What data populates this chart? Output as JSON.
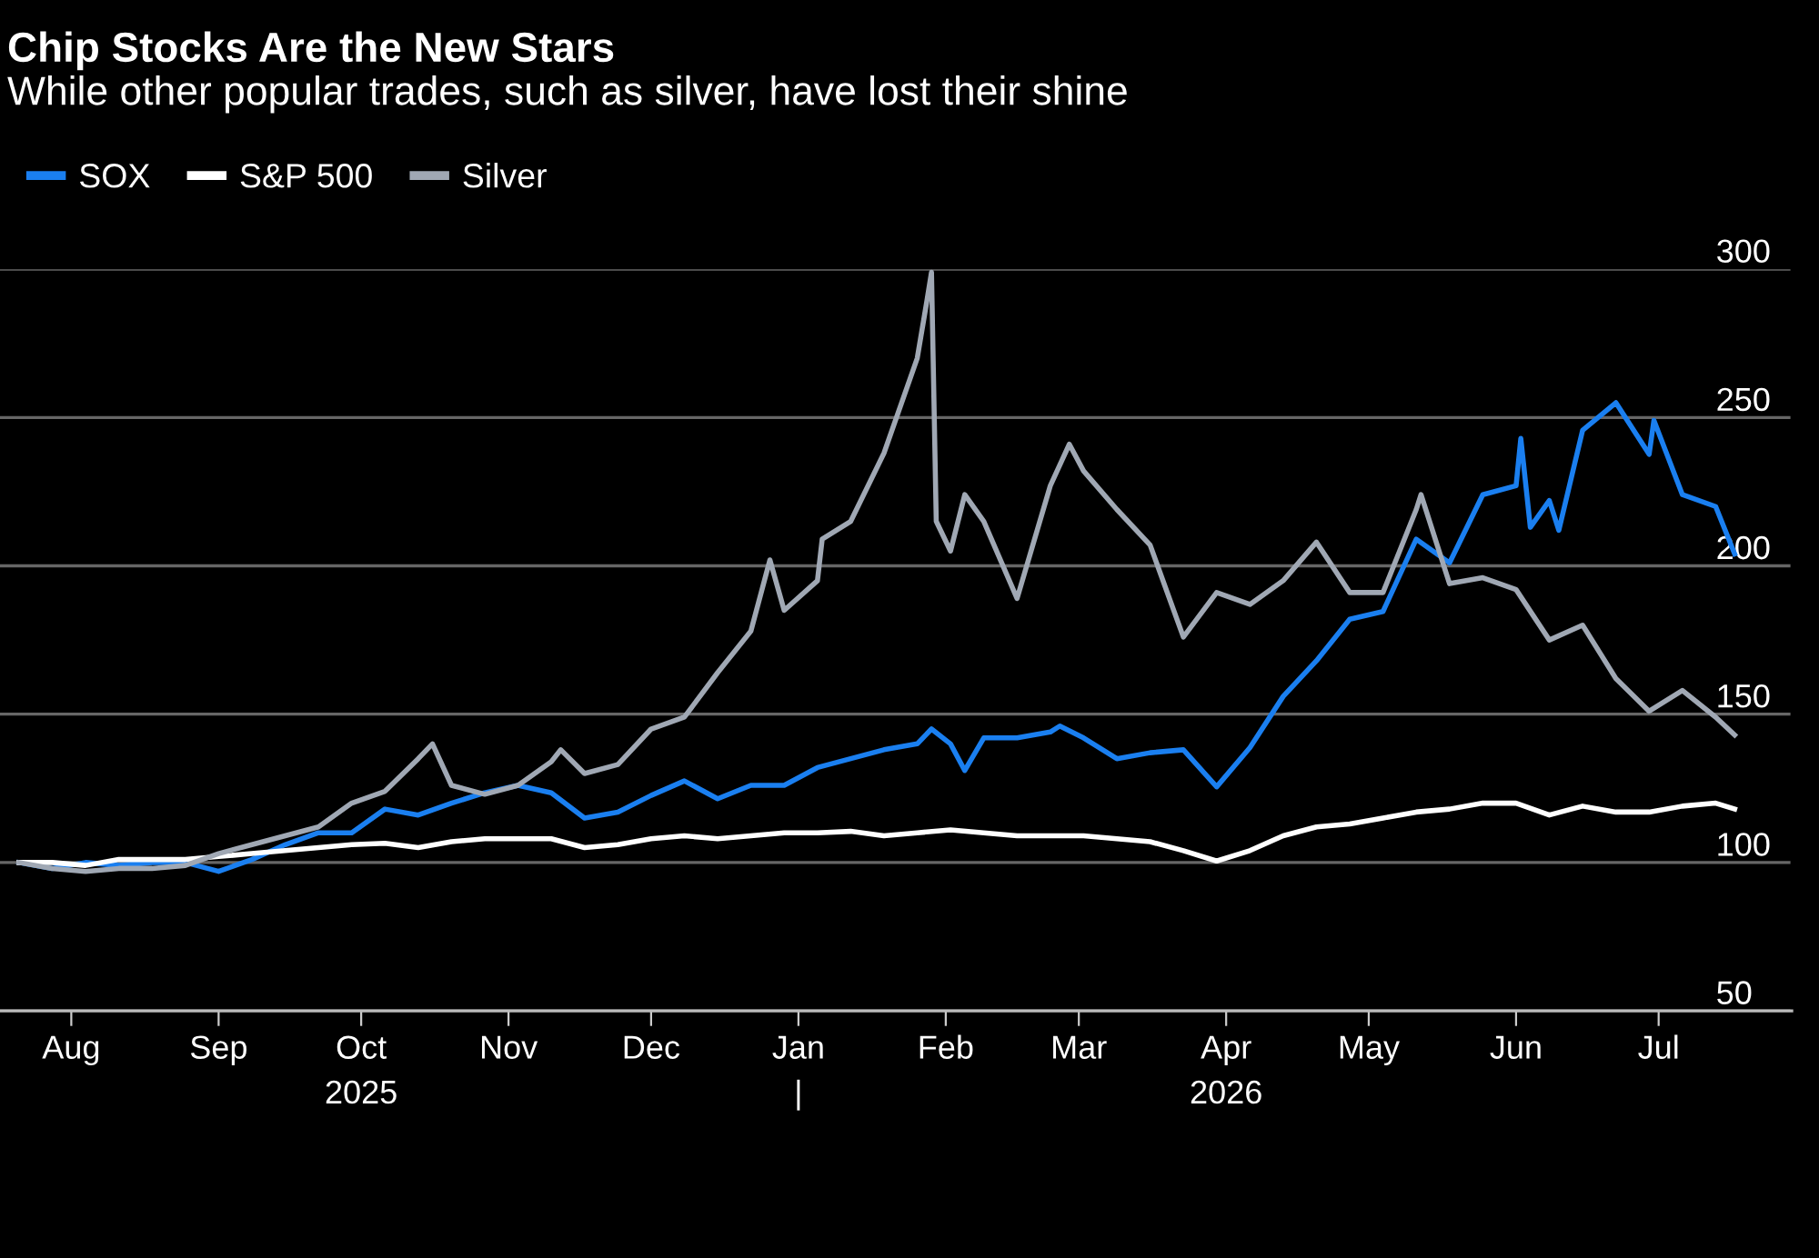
{
  "chart_data": {
    "type": "line",
    "title": "Chip Stocks Are the New Stars",
    "subtitle": "While other popular trades, such as silver, have lost their shine",
    "series": [
      {
        "name": "SOX",
        "color": "#1a7ff0",
        "x": [
          "2025-07-21",
          "2025-07-28",
          "2025-08-04",
          "2025-08-11",
          "2025-08-18",
          "2025-08-25",
          "2025-09-01",
          "2025-09-08",
          "2025-09-15",
          "2025-09-22",
          "2025-09-29",
          "2025-10-06",
          "2025-10-13",
          "2025-10-20",
          "2025-10-27",
          "2025-11-03",
          "2025-11-10",
          "2025-11-17",
          "2025-11-24",
          "2025-12-01",
          "2025-12-08",
          "2025-12-15",
          "2025-12-22",
          "2025-12-29",
          "2026-01-05",
          "2026-01-12",
          "2026-01-19",
          "2026-01-26",
          "2026-01-29",
          "2026-02-02",
          "2026-02-05",
          "2026-02-09",
          "2026-02-16",
          "2026-02-23",
          "2026-02-25",
          "2026-03-02",
          "2026-03-09",
          "2026-03-16",
          "2026-03-23",
          "2026-03-30",
          "2026-04-06",
          "2026-04-13",
          "2026-04-20",
          "2026-04-27",
          "2026-05-04",
          "2026-05-11",
          "2026-05-18",
          "2026-05-25",
          "2026-06-01",
          "2026-06-02",
          "2026-06-04",
          "2026-06-08",
          "2026-06-10",
          "2026-06-15",
          "2026-06-22",
          "2026-06-29",
          "2026-06-30",
          "2026-07-06",
          "2026-07-13",
          "2026-07-17"
        ],
        "values": [
          100,
          98,
          100,
          99,
          100,
          100,
          97,
          101,
          106,
          110,
          110,
          118,
          116,
          120,
          123.5,
          126,
          123.5,
          115,
          117,
          122.6,
          127.5,
          121.5,
          126,
          126,
          132,
          135,
          138,
          140,
          145,
          140,
          131,
          142,
          142,
          144,
          146,
          142,
          135,
          137,
          138,
          125.5,
          138.7,
          156,
          168,
          182,
          184.6,
          209,
          201,
          224,
          227,
          243,
          213,
          222,
          212,
          245.7,
          255,
          237.6,
          249,
          224,
          220,
          204
        ]
      },
      {
        "name": "S&P 500",
        "color": "#ffffff",
        "x": [
          "2025-07-21",
          "2025-07-28",
          "2025-08-04",
          "2025-08-11",
          "2025-08-18",
          "2025-08-25",
          "2025-09-01",
          "2025-09-08",
          "2025-09-15",
          "2025-09-22",
          "2025-09-29",
          "2025-10-06",
          "2025-10-13",
          "2025-10-20",
          "2025-10-27",
          "2025-11-03",
          "2025-11-10",
          "2025-11-17",
          "2025-11-24",
          "2025-12-01",
          "2025-12-08",
          "2025-12-15",
          "2025-12-22",
          "2025-12-29",
          "2026-01-05",
          "2026-01-12",
          "2026-01-19",
          "2026-01-26",
          "2026-02-02",
          "2026-02-09",
          "2026-02-16",
          "2026-02-23",
          "2026-03-02",
          "2026-03-09",
          "2026-03-16",
          "2026-03-23",
          "2026-03-30",
          "2026-04-06",
          "2026-04-13",
          "2026-04-20",
          "2026-04-27",
          "2026-05-04",
          "2026-05-11",
          "2026-05-18",
          "2026-05-25",
          "2026-06-01",
          "2026-06-08",
          "2026-06-15",
          "2026-06-22",
          "2026-06-29",
          "2026-07-06",
          "2026-07-13",
          "2026-07-17"
        ],
        "values": [
          100,
          100,
          99,
          101,
          101,
          101,
          102,
          103,
          104,
          105,
          106,
          106.5,
          105,
          107,
          108,
          108,
          108,
          105,
          106,
          108,
          109,
          108,
          109,
          110,
          110,
          110.5,
          109,
          110,
          111,
          110,
          109,
          109,
          109,
          108,
          107,
          104,
          100.5,
          104,
          109,
          112,
          113,
          115,
          117,
          118,
          120,
          120,
          116,
          119,
          117,
          117,
          119,
          120,
          118
        ]
      },
      {
        "name": "Silver",
        "color": "#a0a8b4",
        "x": [
          "2025-07-21",
          "2025-07-28",
          "2025-08-04",
          "2025-08-11",
          "2025-08-18",
          "2025-08-25",
          "2025-09-01",
          "2025-09-08",
          "2025-09-15",
          "2025-09-22",
          "2025-09-29",
          "2025-10-06",
          "2025-10-13",
          "2025-10-16",
          "2025-10-20",
          "2025-10-27",
          "2025-11-03",
          "2025-11-10",
          "2025-11-12",
          "2025-11-17",
          "2025-11-24",
          "2025-12-01",
          "2025-12-08",
          "2025-12-15",
          "2025-12-22",
          "2025-12-26",
          "2025-12-29",
          "2026-01-05",
          "2026-01-06",
          "2026-01-12",
          "2026-01-19",
          "2026-01-26",
          "2026-01-28",
          "2026-01-29",
          "2026-01-30",
          "2026-02-02",
          "2026-02-05",
          "2026-02-09",
          "2026-02-16",
          "2026-02-23",
          "2026-02-27",
          "2026-03-02",
          "2026-03-09",
          "2026-03-16",
          "2026-03-23",
          "2026-03-30",
          "2026-04-06",
          "2026-04-13",
          "2026-04-20",
          "2026-04-27",
          "2026-05-04",
          "2026-05-11",
          "2026-05-12",
          "2026-05-18",
          "2026-05-25",
          "2026-06-01",
          "2026-06-08",
          "2026-06-15",
          "2026-06-22",
          "2026-06-29",
          "2026-07-06",
          "2026-07-13",
          "2026-07-17"
        ],
        "values": [
          100,
          98,
          97,
          98,
          98,
          99,
          103,
          106,
          109,
          112,
          120,
          124,
          135,
          140,
          126,
          123,
          126,
          134,
          138,
          130,
          133,
          145,
          149,
          164,
          178,
          202,
          185,
          195,
          209,
          215,
          238,
          270,
          289,
          299,
          215,
          205,
          224,
          215,
          189,
          227,
          241,
          232,
          219,
          207,
          176,
          191,
          187,
          195,
          208,
          191,
          191,
          219,
          224,
          194,
          196,
          192,
          175,
          180,
          162,
          151,
          158,
          149,
          143
        ]
      }
    ],
    "xlim": [
      "2025-07-17",
      "2026-07-29"
    ],
    "xticks": [
      {
        "value": "2025-08-01",
        "label": "Aug"
      },
      {
        "value": "2025-09-01",
        "label": "Sep"
      },
      {
        "value": "2025-10-01",
        "label": "Oct\n2025"
      },
      {
        "value": "2025-11-01",
        "label": "Nov"
      },
      {
        "value": "2025-12-01",
        "label": "Dec"
      },
      {
        "value": "2026-01-01",
        "label": "Jan\n|"
      },
      {
        "value": "2026-02-01",
        "label": "Feb"
      },
      {
        "value": "2026-03-01",
        "label": "Mar"
      },
      {
        "value": "2026-04-01",
        "label": "Apr\n2026"
      },
      {
        "value": "2026-05-01",
        "label": "May"
      },
      {
        "value": "2026-06-01",
        "label": "Jun"
      },
      {
        "value": "2026-07-01",
        "label": "Jul"
      }
    ],
    "ylim": [
      50,
      300
    ],
    "yticks": [
      50,
      100,
      150,
      200,
      250,
      300
    ],
    "grid": "y",
    "legend": "top left",
    "marker": "none",
    "line_style": "solid"
  }
}
